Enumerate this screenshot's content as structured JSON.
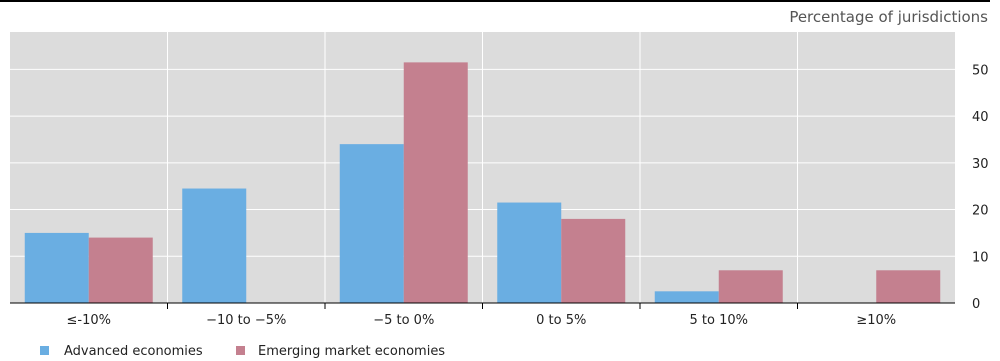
{
  "chart_data": {
    "type": "bar",
    "unit_label": "Percentage of jurisdictions",
    "categories": [
      "≤-10%",
      "−10 to −5%",
      "−5 to 0%",
      "0 to 5%",
      "5 to 10%",
      "≥10%"
    ],
    "series": [
      {
        "name": "Advanced economies",
        "values": [
          15,
          24.5,
          34,
          21.5,
          2.5,
          0
        ],
        "color": "#6aaee2"
      },
      {
        "name": "Emerging market economies",
        "values": [
          14,
          0,
          51.5,
          18,
          7,
          7
        ],
        "color": "#c4808f"
      }
    ],
    "y_ticks": [
      0,
      10,
      20,
      30,
      40,
      50
    ],
    "ylim": [
      0,
      58
    ],
    "grid": true,
    "y_axis_side": "right",
    "legend_position": "bottom-left",
    "colors": {
      "plot_background": "#dcdcdc",
      "grid": "#ffffff",
      "axis": "#000000"
    }
  }
}
